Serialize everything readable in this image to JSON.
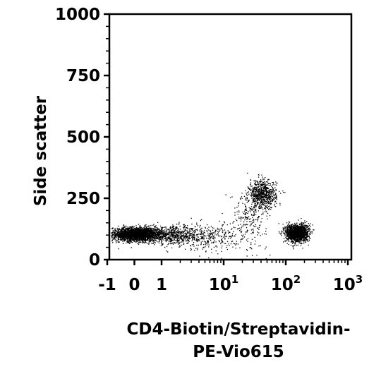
{
  "chart_data": {
    "type": "scatter",
    "title": "",
    "xlabel_lines": [
      "CD4-Biotin/Streptavidin-",
      "PE-Vio615"
    ],
    "ylabel": "Side scatter",
    "x_scale": "hlog",
    "ylim": [
      0,
      1000
    ],
    "xlim": [
      -1,
      1000
    ],
    "grid": false,
    "legend": "none",
    "point_color": "#000000",
    "y_ticks": [
      {
        "value": 0,
        "label": "0"
      },
      {
        "value": 250,
        "label": "250"
      },
      {
        "value": 500,
        "label": "500"
      },
      {
        "value": 750,
        "label": "750"
      },
      {
        "value": 1000,
        "label": "1000"
      }
    ],
    "x_ticks": [
      {
        "value": -1,
        "label": "-1",
        "sup": ""
      },
      {
        "value": 0,
        "label": "0",
        "sup": ""
      },
      {
        "value": 1,
        "label": "1",
        "sup": ""
      },
      {
        "value": 10,
        "label": "10",
        "sup": "1"
      },
      {
        "value": 100,
        "label": "10",
        "sup": "2"
      },
      {
        "value": 1000,
        "label": "10",
        "sup": "3"
      }
    ],
    "populations": [
      {
        "center_x": 0.1,
        "center_y": 105,
        "spread_x": 0.45,
        "spread_y": 14,
        "count": 2600
      },
      {
        "center_x": 1.6,
        "center_y": 100,
        "spread_x": 0.9,
        "spread_y": 18,
        "count": 500
      },
      {
        "center_x": 5,
        "center_y": 95,
        "spread_x": 4,
        "spread_y": 25,
        "count": 350
      },
      {
        "center_x": 42,
        "center_y": 265,
        "spread_x": 12,
        "spread_y": 30,
        "count": 750
      },
      {
        "center_x": 25,
        "center_y": 170,
        "spread_x": 10,
        "spread_y": 60,
        "count": 250
      },
      {
        "center_x": 150,
        "center_y": 110,
        "spread_x": 35,
        "spread_y": 18,
        "count": 1600
      }
    ]
  }
}
